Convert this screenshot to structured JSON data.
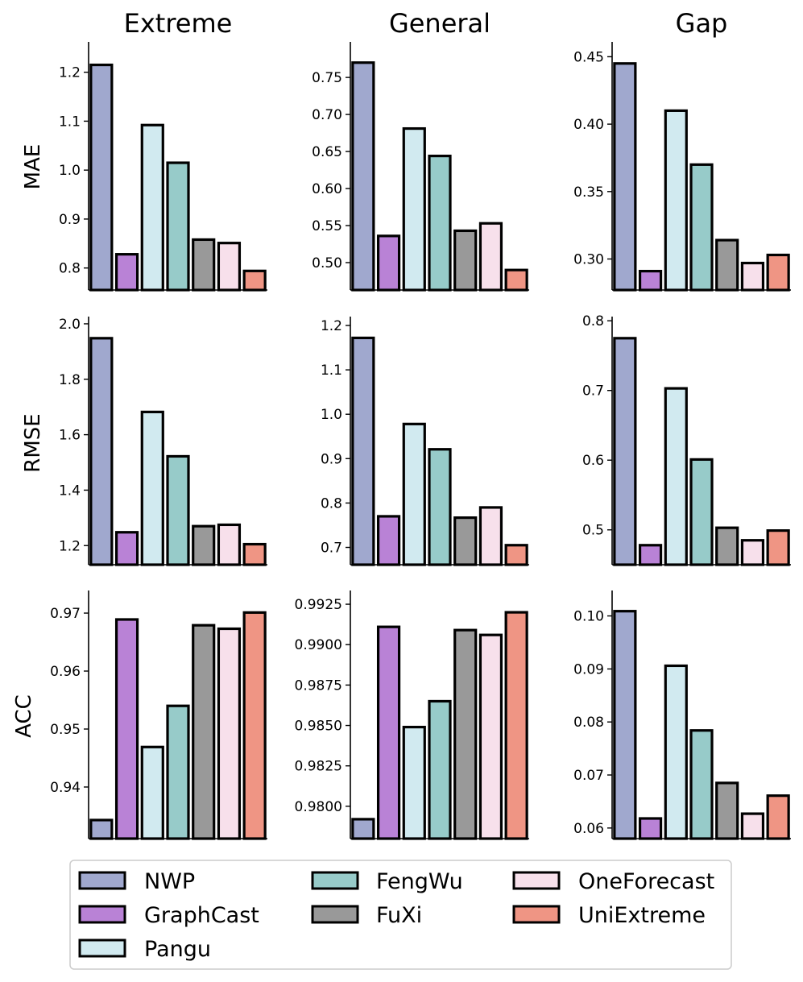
{
  "colors": {
    "NWP": "#a0a8ce",
    "GraphCast": "#b982d6",
    "Pangu": "#d1eaf0",
    "FengWu": "#97cbc9",
    "FuXi": "#999999",
    "OneForecast": "#f7e0eb",
    "UniExtreme": "#ef9584"
  },
  "legend": [
    "NWP",
    "GraphCast",
    "Pangu",
    "FengWu",
    "FuXi",
    "OneForecast",
    "UniExtreme"
  ],
  "columns": [
    "Extreme",
    "General",
    "Gap"
  ],
  "rows": [
    "MAE",
    "RMSE",
    "ACC"
  ],
  "chart_data": [
    {
      "type": "bar",
      "row": "MAE",
      "column": "Extreme",
      "categories": [
        "NWP",
        "GraphCast",
        "Pangu",
        "FengWu",
        "FuXi",
        "OneForecast",
        "UniExtreme"
      ],
      "values": [
        1.215,
        0.828,
        1.092,
        1.015,
        0.858,
        0.851,
        0.794
      ],
      "ylim": [
        0.755,
        1.262
      ],
      "ticks": [
        0.8,
        0.9,
        1.0,
        1.1,
        1.2
      ],
      "tick_labels": [
        "0.8",
        "0.9",
        "1.0",
        "1.1",
        "1.2"
      ]
    },
    {
      "type": "bar",
      "row": "MAE",
      "column": "General",
      "categories": [
        "NWP",
        "GraphCast",
        "Pangu",
        "FengWu",
        "FuXi",
        "OneForecast",
        "UniExtreme"
      ],
      "values": [
        0.77,
        0.536,
        0.681,
        0.644,
        0.543,
        0.553,
        0.49
      ],
      "ylim": [
        0.463,
        0.798
      ],
      "ticks": [
        0.5,
        0.55,
        0.6,
        0.65,
        0.7,
        0.75
      ],
      "tick_labels": [
        "0.50",
        "0.55",
        "0.60",
        "0.65",
        "0.70",
        "0.75"
      ]
    },
    {
      "type": "bar",
      "row": "MAE",
      "column": "Gap",
      "categories": [
        "NWP",
        "GraphCast",
        "Pangu",
        "FengWu",
        "FuXi",
        "OneForecast",
        "UniExtreme"
      ],
      "values": [
        0.445,
        0.291,
        0.41,
        0.37,
        0.314,
        0.297,
        0.303
      ],
      "ylim": [
        0.277,
        0.461
      ],
      "ticks": [
        0.3,
        0.35,
        0.4,
        0.45
      ],
      "tick_labels": [
        "0.30",
        "0.35",
        "0.40",
        "0.45"
      ]
    },
    {
      "type": "bar",
      "row": "RMSE",
      "column": "Extreme",
      "categories": [
        "NWP",
        "GraphCast",
        "Pangu",
        "FengWu",
        "FuXi",
        "OneForecast",
        "UniExtreme"
      ],
      "values": [
        1.948,
        1.248,
        1.682,
        1.522,
        1.27,
        1.275,
        1.205
      ],
      "ylim": [
        1.131,
        2.026
      ],
      "ticks": [
        1.2,
        1.4,
        1.6,
        1.8,
        2.0
      ],
      "tick_labels": [
        "1.2",
        "1.4",
        "1.6",
        "1.8",
        "2.0"
      ]
    },
    {
      "type": "bar",
      "row": "RMSE",
      "column": "General",
      "categories": [
        "NWP",
        "GraphCast",
        "Pangu",
        "FengWu",
        "FuXi",
        "OneForecast",
        "UniExtreme"
      ],
      "values": [
        1.172,
        0.77,
        0.978,
        0.921,
        0.767,
        0.79,
        0.705
      ],
      "ylim": [
        0.661,
        1.22
      ],
      "ticks": [
        0.7,
        0.8,
        0.9,
        1.0,
        1.1,
        1.2
      ],
      "tick_labels": [
        "0.7",
        "0.8",
        "0.9",
        "1.0",
        "1.1",
        "1.2"
      ]
    },
    {
      "type": "bar",
      "row": "RMSE",
      "column": "Gap",
      "categories": [
        "NWP",
        "GraphCast",
        "Pangu",
        "FengWu",
        "FuXi",
        "OneForecast",
        "UniExtreme"
      ],
      "values": [
        0.775,
        0.478,
        0.703,
        0.601,
        0.503,
        0.485,
        0.499
      ],
      "ylim": [
        0.45,
        0.806
      ],
      "ticks": [
        0.5,
        0.6,
        0.7,
        0.8
      ],
      "tick_labels": [
        "0.5",
        "0.6",
        "0.7",
        "0.8"
      ]
    },
    {
      "type": "bar",
      "row": "ACC",
      "column": "Extreme",
      "categories": [
        "NWP",
        "GraphCast",
        "Pangu",
        "FengWu",
        "FuXi",
        "OneForecast",
        "UniExtreme"
      ],
      "values": [
        0.9343,
        0.9689,
        0.9469,
        0.954,
        0.9679,
        0.9673,
        0.9701
      ],
      "ylim": [
        0.9311,
        0.9739
      ],
      "ticks": [
        0.94,
        0.95,
        0.96,
        0.97
      ],
      "tick_labels": [
        "0.94",
        "0.95",
        "0.96",
        "0.97"
      ]
    },
    {
      "type": "bar",
      "row": "ACC",
      "column": "General",
      "categories": [
        "NWP",
        "GraphCast",
        "Pangu",
        "FengWu",
        "FuXi",
        "OneForecast",
        "UniExtreme"
      ],
      "values": [
        0.9792,
        0.9911,
        0.9849,
        0.9865,
        0.9909,
        0.9906,
        0.992
      ],
      "ylim": [
        0.978,
        0.99335
      ],
      "ticks": [
        0.98,
        0.9825,
        0.985,
        0.9875,
        0.99,
        0.9925
      ],
      "tick_labels": [
        "0.9800",
        "0.9825",
        "0.9850",
        "0.9875",
        "0.9900",
        "0.9925"
      ]
    },
    {
      "type": "bar",
      "row": "ACC",
      "column": "Gap",
      "categories": [
        "NWP",
        "GraphCast",
        "Pangu",
        "FengWu",
        "FuXi",
        "OneForecast",
        "UniExtreme"
      ],
      "values": [
        0.1009,
        0.0618,
        0.0906,
        0.0784,
        0.0685,
        0.0627,
        0.0661
      ],
      "ylim": [
        0.058,
        0.1048
      ],
      "ticks": [
        0.06,
        0.07,
        0.08,
        0.09,
        0.1
      ],
      "tick_labels": [
        "0.06",
        "0.07",
        "0.08",
        "0.09",
        "0.10"
      ]
    }
  ]
}
